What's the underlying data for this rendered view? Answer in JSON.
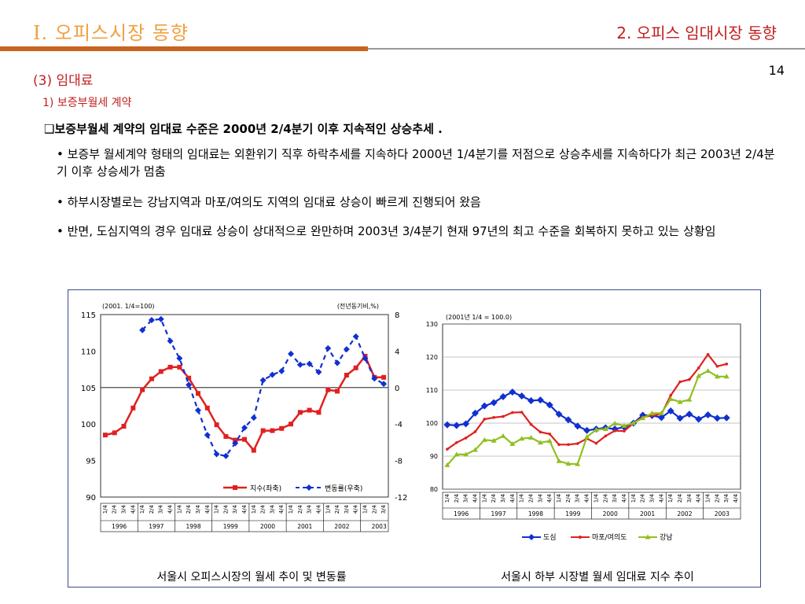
{
  "header": {
    "section_title": "Ⅰ. 오피스시장 동향",
    "sub_title": "2. 오피스 임대시장 동향",
    "page_number": "14"
  },
  "content": {
    "heading": "(3) 임대료",
    "subheading": "1) 보증부월세 계약",
    "lead": "❑보증부월세 계약의 임대료 수준은 2000년 2/4분기 이후 지속적인 상승추세 .",
    "bullets": [
      "• 보증부 월세계약 형태의 임대료는 외환위기 직후 하락추세를 지속하다 2000년 1/4분기를 저점으로 상승추세를 지속하다가 최근 2003년 2/4분기 이후 상승세가 멈춤",
      "• 하부시장별로는 강남지역과 마포/여의도 지역의 임대료 상승이 빠르게 진행되어 왔음",
      "• 반면, 도심지역의 경우 임대료 상승이 상대적으로 완만하며 2003년 3/4분기 현재 97년의 최고 수준을 회복하지 못하고 있는 상황임"
    ]
  },
  "captions": {
    "left": "서울시 오피스시장의 월세 추이 및 변동률",
    "right": "서울시 하부 시장별 월세 임대료 지수 추이"
  },
  "colors": {
    "red": "#E02020",
    "blue": "#1030D0",
    "green": "#90C020",
    "accent": "#C8641E"
  },
  "chart_data": [
    {
      "type": "line",
      "title": "",
      "left_note": "(2001. 1/4=100)",
      "right_note": "(전년동기비,%)",
      "ylim": [
        90,
        115
      ],
      "y_ticks": [
        "115",
        "110",
        "105",
        "100",
        "95",
        "90"
      ],
      "y2lim": [
        -12,
        8
      ],
      "y2_ticks": [
        "8",
        "4",
        "0",
        "-4",
        "-8",
        "-12"
      ],
      "x_quarters": [
        "1/4",
        "2/4",
        "3/4",
        "4/4",
        "1/4",
        "2/4",
        "3/4",
        "4/4",
        "1/4",
        "2/4",
        "3/4",
        "4/4",
        "1/4",
        "2/4",
        "3/4",
        "4/4",
        "1/4",
        "2/4",
        "3/4",
        "4/4",
        "1/4",
        "2/4",
        "3/4",
        "4/4",
        "1/4",
        "2/4",
        "3/4",
        "4/4",
        "1/4",
        "2/4",
        "3/4"
      ],
      "x_years": [
        "1996",
        "1997",
        "1998",
        "1999",
        "2000",
        "2001",
        "2002",
        "2003"
      ],
      "series": [
        {
          "name": "지수(좌축)",
          "axis": "left",
          "color": "#E02020",
          "values": [
            98.5,
            98.8,
            99.7,
            102.2,
            104.7,
            106.2,
            107.2,
            107.8,
            107.8,
            106.3,
            104.2,
            102.2,
            99.9,
            98.3,
            97.8,
            97.9,
            96.4,
            99.1,
            99.1,
            99.4,
            100.0,
            101.6,
            101.9,
            101.6,
            104.7,
            104.5,
            106.7,
            107.7,
            109.3,
            106.4,
            106.4
          ]
        },
        {
          "name": "변동률(우축)",
          "axis": "right",
          "color": "#1030D0",
          "values": [
            null,
            null,
            null,
            null,
            6.3,
            7.4,
            7.5,
            5.1,
            3.2,
            0.3,
            -2.5,
            -5.2,
            -7.3,
            -7.5,
            -6.1,
            -4.4,
            -3.3,
            0.8,
            1.4,
            1.8,
            3.7,
            2.5,
            2.6,
            1.7,
            4.3,
            2.7,
            4.2,
            5.6,
            3.2,
            1.0,
            0.4
          ]
        }
      ]
    },
    {
      "type": "line",
      "title": "",
      "note": "(2001년 1/4 = 100.0)",
      "ylim": [
        80,
        130
      ],
      "y_ticks": [
        "130",
        "120",
        "110",
        "100",
        "90",
        "80"
      ],
      "x_quarters": [
        "1/4",
        "2/4",
        "3/4",
        "4/4",
        "1/4",
        "2/4",
        "3/4",
        "4/4",
        "1/4",
        "2/4",
        "3/4",
        "4/4",
        "1/4",
        "2/4",
        "3/4",
        "4/4",
        "1/4",
        "2/4",
        "3/4",
        "4/4",
        "1/4",
        "2/4",
        "3/4",
        "4/4",
        "1/4",
        "2/4",
        "3/4",
        "4/4",
        "1/4",
        "2/4",
        "3/4",
        "4/4"
      ],
      "x_years": [
        "1996",
        "1997",
        "1998",
        "1999",
        "2000",
        "2001",
        "2002",
        "2003"
      ],
      "series": [
        {
          "name": "도심",
          "color": "#1030D0",
          "values": [
            99.5,
            99.3,
            99.8,
            103.0,
            105.2,
            106.2,
            108.0,
            109.4,
            108.2,
            106.8,
            107.0,
            105.5,
            102.7,
            101.0,
            99.1,
            97.8,
            98.2,
            98.6,
            98.2,
            98.8,
            100.0,
            102.4,
            102.3,
            101.7,
            103.7,
            101.5,
            102.7,
            101.2,
            102.5,
            101.5,
            101.6,
            null
          ]
        },
        {
          "name": "마포/여의도",
          "color": "#E02020",
          "values": [
            92.1,
            94.1,
            95.5,
            97.4,
            101.2,
            101.7,
            102.0,
            103.2,
            103.3,
            99.6,
            97.3,
            96.7,
            93.5,
            93.5,
            93.8,
            95.3,
            93.9,
            96.1,
            97.7,
            97.6,
            100.0,
            101.8,
            102.3,
            102.7,
            108.4,
            112.5,
            113.2,
            116.7,
            120.8,
            117.2,
            117.9,
            null
          ]
        },
        {
          "name": "강남",
          "color": "#90C020",
          "values": [
            87.3,
            90.5,
            90.5,
            91.9,
            94.9,
            94.7,
            96.1,
            93.7,
            95.3,
            95.6,
            94.1,
            94.6,
            88.5,
            87.7,
            87.6,
            95.8,
            98.0,
            98.2,
            99.9,
            99.2,
            100.0,
            101.5,
            103.0,
            103.0,
            107.3,
            106.4,
            107.1,
            114.3,
            115.8,
            114.1,
            114.1,
            null
          ]
        }
      ]
    }
  ]
}
